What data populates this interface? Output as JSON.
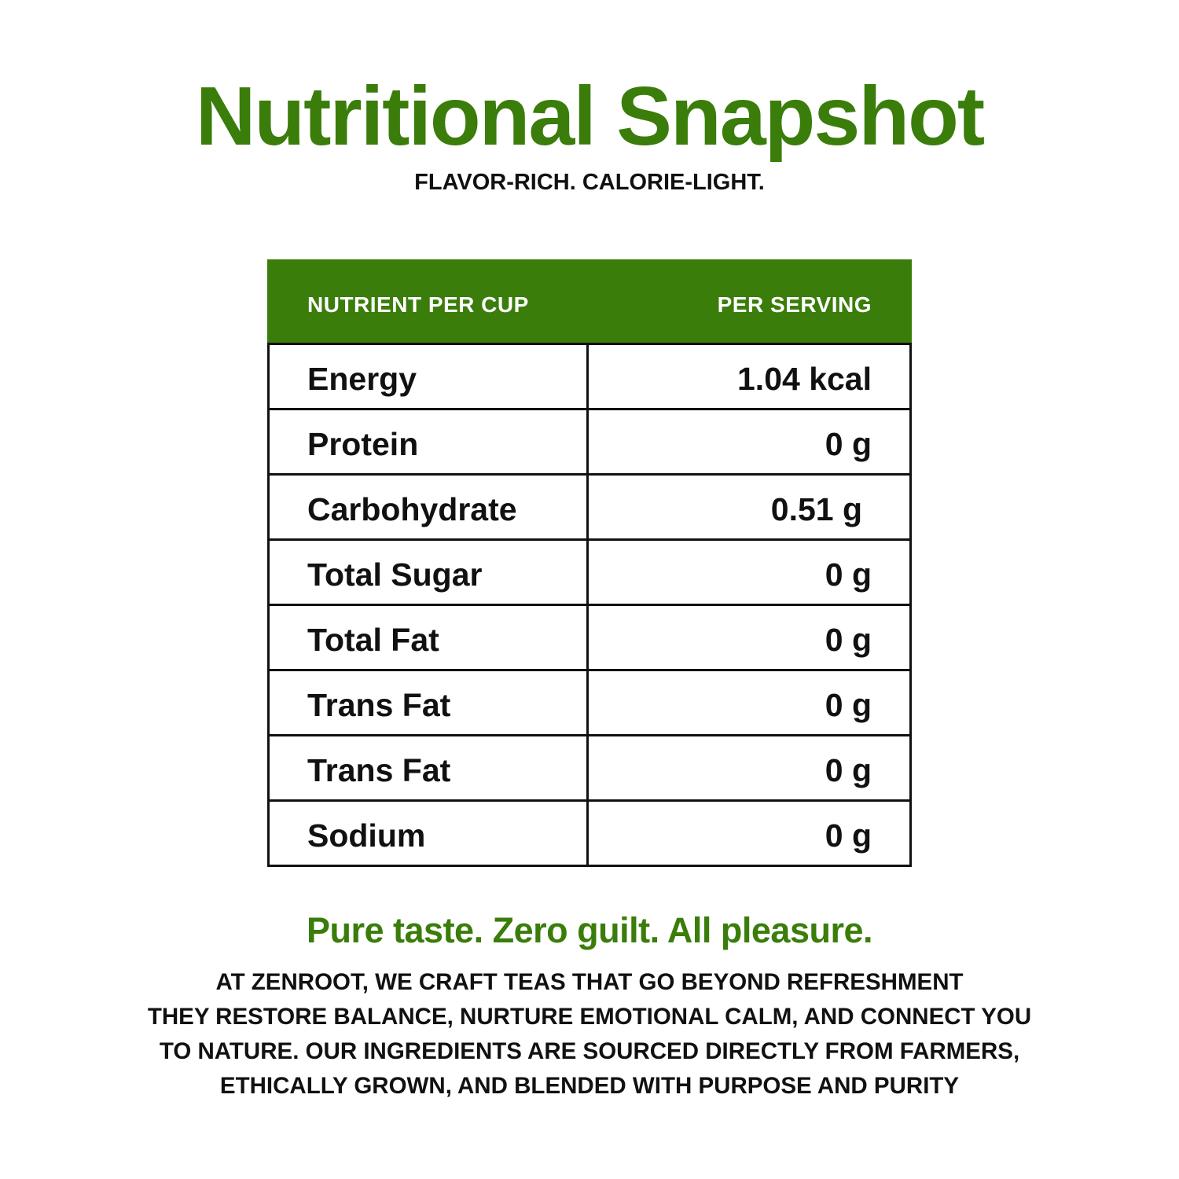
{
  "header": {
    "title": "Nutritional Snapshot",
    "subtitle": "FLAVOR-RICH. CALORIE-LIGHT."
  },
  "table": {
    "columns": [
      "NUTRIENT PER CUP",
      "PER SERVING"
    ],
    "rows": [
      {
        "nutrient": "Energy",
        "value": "1.04 kcal"
      },
      {
        "nutrient": "Protein",
        "value": "0 g"
      },
      {
        "nutrient": "Carbohydrate",
        "value": "0.51 g"
      },
      {
        "nutrient": "Total Sugar",
        "value": "0 g"
      },
      {
        "nutrient": "Total Fat",
        "value": "0 g"
      },
      {
        "nutrient": "Trans Fat",
        "value": "0 g"
      },
      {
        "nutrient": "Trans Fat",
        "value": "0 g"
      },
      {
        "nutrient": "Sodium",
        "value": "0 g"
      }
    ]
  },
  "footer": {
    "tagline": "Pure taste. Zero guilt. All pleasure.",
    "lines": [
      "AT ZENROOT, WE CRAFT TEAS THAT GO BEYOND REFRESHMENT",
      "THEY RESTORE BALANCE, NURTURE EMOTIONAL CALM, AND CONNECT YOU",
      "TO NATURE. OUR INGREDIENTS ARE SOURCED DIRECTLY FROM FARMERS,",
      "ETHICALLY GROWN, AND BLENDED WITH PURPOSE AND PURITY"
    ]
  },
  "colors": {
    "accent_green": "#3a7d0a",
    "text": "#111111",
    "background": "#ffffff"
  }
}
